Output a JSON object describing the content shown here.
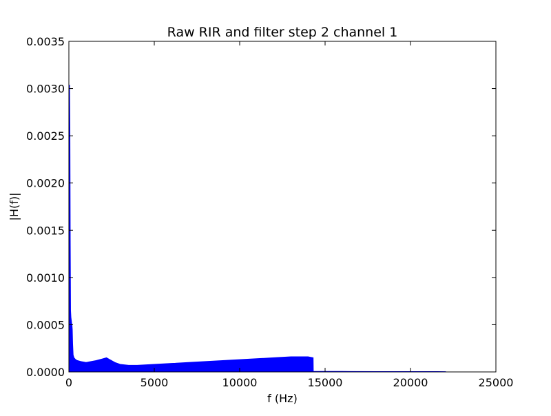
{
  "chart_data": {
    "type": "area",
    "title": "Raw RIR and filter step 2 channel 1",
    "xlabel": "f (Hz)",
    "ylabel": "|H(f)|",
    "xlim": [
      0,
      25000
    ],
    "ylim": [
      0,
      0.0035
    ],
    "xticks": [
      0,
      5000,
      10000,
      15000,
      20000,
      25000
    ],
    "xtick_labels": [
      "0",
      "5000",
      "10000",
      "15000",
      "20000",
      "25000"
    ],
    "yticks": [
      0,
      0.0005,
      0.001,
      0.0015,
      0.002,
      0.0025,
      0.003,
      0.0035
    ],
    "ytick_labels": [
      "0.0000",
      "0.0005",
      "0.0010",
      "0.0015",
      "0.0020",
      "0.0025",
      "0.0030",
      "0.0035"
    ],
    "grid": false,
    "legend": "none",
    "color": "#0000ff",
    "series": [
      {
        "x": [
          0,
          20,
          40,
          60,
          80,
          100,
          120,
          140,
          160,
          180,
          200,
          220,
          250,
          300,
          400,
          500,
          700,
          1000,
          1300,
          1600,
          2000,
          2200,
          2400,
          2700,
          3000,
          3500,
          4000,
          5000,
          6000,
          7000,
          8000,
          9000,
          10000,
          11000,
          12000,
          13000,
          14000,
          14300,
          14310,
          16000,
          18000,
          20000,
          22050
        ],
        "y": [
          0.0005,
          0.0012,
          0.00304,
          0.0026,
          0.0014,
          0.00065,
          0.00058,
          0.00055,
          0.00052,
          0.0005,
          0.00045,
          0.0003,
          0.00018,
          0.00015,
          0.00013,
          0.00012,
          0.00011,
          0.0001,
          0.00011,
          0.00012,
          0.00014,
          0.00015,
          0.00013,
          0.0001,
          8e-05,
          7e-05,
          7e-05,
          8e-05,
          9e-05,
          0.0001,
          0.00011,
          0.00012,
          0.00013,
          0.00014,
          0.00015,
          0.00016,
          0.00016,
          0.00015,
          5e-06,
          5e-06,
          4e-06,
          4e-06,
          3e-06
        ]
      }
    ]
  }
}
